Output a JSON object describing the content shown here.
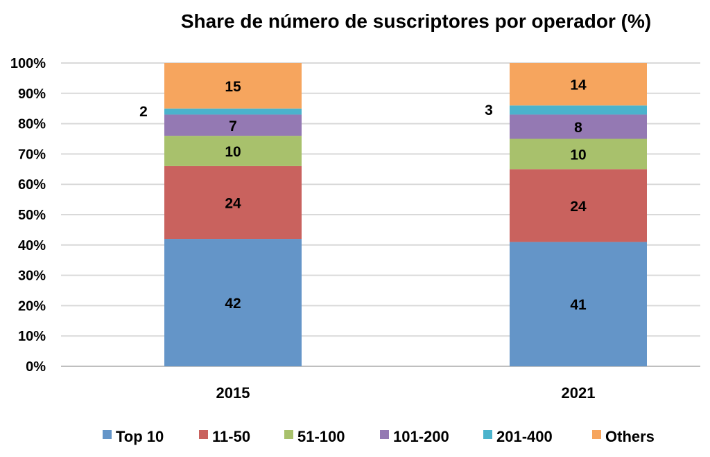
{
  "chart_data": {
    "type": "bar",
    "stacked": true,
    "title": "Share de número de suscriptores por operador (%)",
    "categories": [
      "2015",
      "2021"
    ],
    "ylim": [
      0,
      100
    ],
    "y_ticks": [
      "0%",
      "10%",
      "20%",
      "30%",
      "40%",
      "50%",
      "60%",
      "70%",
      "80%",
      "90%",
      "100%"
    ],
    "grid": true,
    "legend_position": "bottom",
    "series": [
      {
        "name": "Top 10",
        "color": "#6495C8",
        "values": [
          42,
          41
        ],
        "labels": [
          "42",
          "41"
        ]
      },
      {
        "name": "11-50",
        "color": "#C9625E",
        "values": [
          24,
          24
        ],
        "labels": [
          "24",
          "24"
        ]
      },
      {
        "name": "51-100",
        "color": "#A8C16C",
        "values": [
          10,
          10
        ],
        "labels": [
          "10",
          "10"
        ]
      },
      {
        "name": "101-200",
        "color": "#9479B3",
        "values": [
          7,
          8
        ],
        "labels": [
          "7",
          "8"
        ]
      },
      {
        "name": "201-400",
        "color": "#4BB3CC",
        "values": [
          2,
          3
        ],
        "labels": [
          "2",
          "3"
        ]
      },
      {
        "name": "Others",
        "color": "#F6A55E",
        "values": [
          15,
          14
        ],
        "labels": [
          "15",
          "14"
        ]
      }
    ]
  }
}
